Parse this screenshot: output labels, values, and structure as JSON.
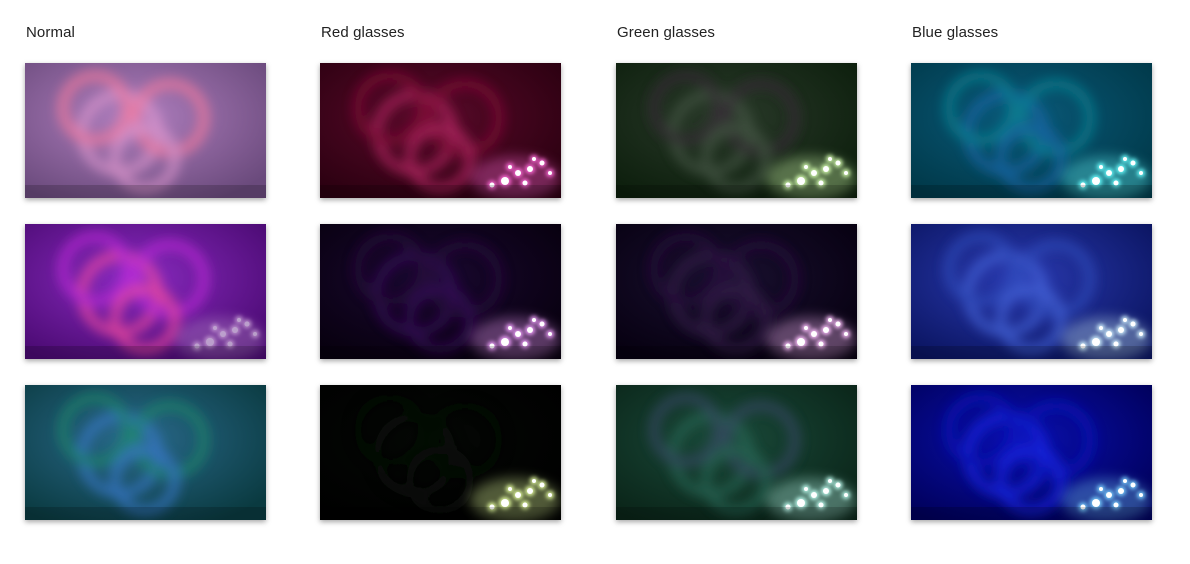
{
  "columns": [
    {
      "label": "Normal"
    },
    {
      "label": "Red glasses"
    },
    {
      "label": "Green glasses"
    },
    {
      "label": "Blue glasses"
    }
  ],
  "photos": [
    [
      {
        "base": "#6a4a7c",
        "glow": "#b07fbf",
        "ring": "#e39ad0",
        "ring2": "#ff7b9c",
        "lights": "#ffb6e6",
        "lightLevel": 0.0
      },
      {
        "base": "#4a0a72",
        "glow": "#8a2bc0",
        "ring": "#ff4fa0",
        "ring2": "#c42bdc",
        "lights": "#ffe6ff",
        "lightLevel": 0.6
      },
      {
        "base": "#0a3a40",
        "glow": "#2a6a8c",
        "ring": "#3a7ad0",
        "ring2": "#1f8c6a",
        "lights": "#c8ffee",
        "lightLevel": 0.0
      }
    ],
    [
      {
        "base": "#2a0010",
        "glow": "#5a0a2a",
        "ring": "#c02a6a",
        "ring2": "#8a0a3a",
        "lights": "#ff6ad8",
        "lightLevel": 1.0
      },
      {
        "base": "#07000e",
        "glow": "#1a0830",
        "ring": "#3a1060",
        "ring2": "#2a0a40",
        "lights": "#f2a0ff",
        "lightLevel": 1.0
      },
      {
        "base": "#000000",
        "glow": "#050805",
        "ring": "#0a100a",
        "ring2": "#050a05",
        "lights": "#e6ffa0",
        "lightLevel": 1.0
      }
    ],
    [
      {
        "base": "#0c1e0c",
        "glow": "#2a3a2a",
        "ring": "#4a5a4a",
        "ring2": "#3a2a3a",
        "lights": "#d6ffb0",
        "lightLevel": 1.0
      },
      {
        "base": "#060010",
        "glow": "#1a1030",
        "ring": "#3a2050",
        "ring2": "#2a1040",
        "lights": "#ffc0ff",
        "lightLevel": 1.0
      },
      {
        "base": "#0a2418",
        "glow": "#1a4a3a",
        "ring": "#2a6a5a",
        "ring2": "#3a4a6a",
        "lights": "#c0fff2",
        "lightLevel": 1.0
      }
    ],
    [
      {
        "base": "#003848",
        "glow": "#0a5a7a",
        "ring": "#1a6ab0",
        "ring2": "#0a8a9a",
        "lights": "#6affff",
        "lightLevel": 1.0
      },
      {
        "base": "#0a1460",
        "glow": "#2a3ab0",
        "ring": "#4a6ae0",
        "ring2": "#3050c0",
        "lights": "#d0f2ff",
        "lightLevel": 1.0
      },
      {
        "base": "#00005a",
        "glow": "#0a10b0",
        "ring": "#1a2af0",
        "ring2": "#0a14c0",
        "lights": "#7ad0ff",
        "lightLevel": 1.0
      }
    ]
  ]
}
